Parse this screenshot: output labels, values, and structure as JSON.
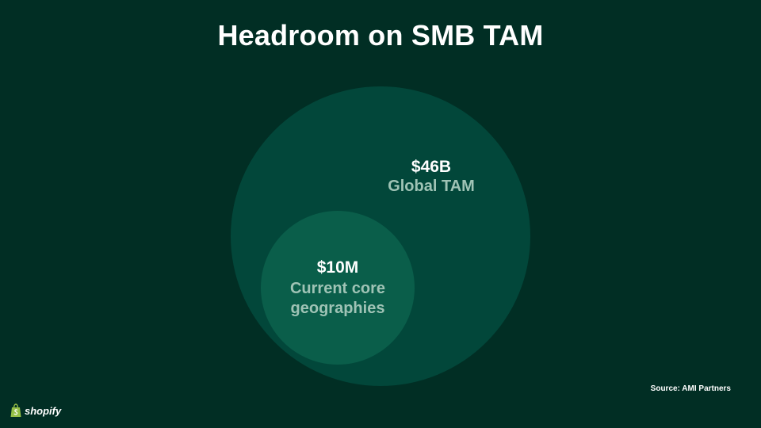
{
  "title": "Headroom on SMB TAM",
  "global_market": {
    "value": "$46B",
    "label": "Global TAM"
  },
  "core_market": {
    "value": "$10M",
    "label_line1": "Current core",
    "label_line2": "geographies"
  },
  "source": "Source: AMI Partners",
  "brand": {
    "name": "shopify",
    "icon": "shopify-bag-icon"
  },
  "colors": {
    "background": "#012e24",
    "outer_circle": "#02473a",
    "inner_circle": "#0a5e4a",
    "muted_text": "#9fc3b5",
    "logo_green": "#95bf47"
  }
}
